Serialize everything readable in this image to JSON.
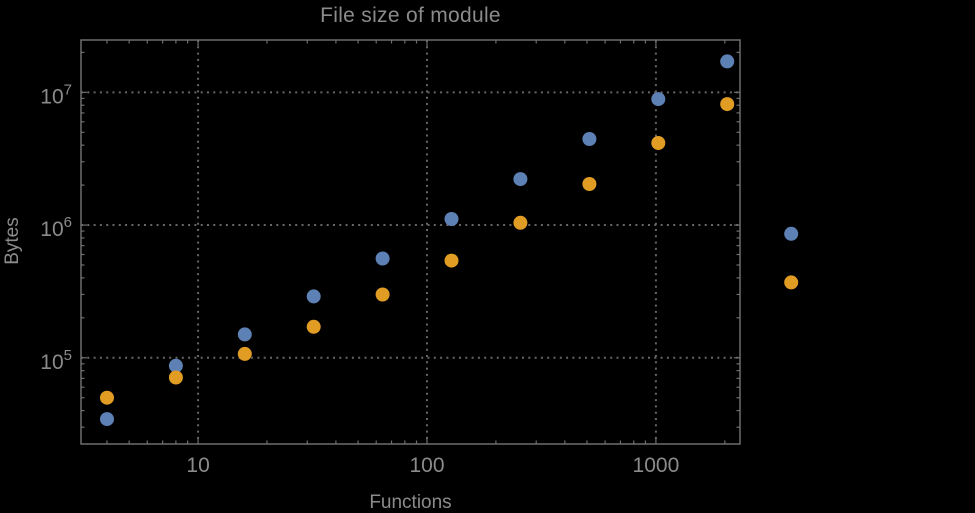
{
  "style": {
    "background": "#000000",
    "text_color": "#8b8b8b",
    "frame_color": "#6e6e6e",
    "grid_color": "#666666",
    "series1_color": "#5e81b5",
    "series2_color": "#e19c24"
  },
  "chart_data": {
    "type": "scatter",
    "title": "File size of module",
    "xlabel": "Functions",
    "ylabel": "Bytes",
    "x_scale": "log",
    "y_scale": "log",
    "grid": "dotted gridlines at decade ticks only",
    "legend": "none",
    "frame": true,
    "x_range": [
      3.08,
      2330
    ],
    "y_range": [
      22400,
      24800000
    ],
    "x_ticks": [
      {
        "value": 10,
        "label": "10"
      },
      {
        "value": 100,
        "label": "100"
      },
      {
        "value": 1000,
        "label": "1000"
      }
    ],
    "y_ticks": [
      {
        "value": 100000,
        "mantissa": "10",
        "exponent": "5"
      },
      {
        "value": 1000000,
        "mantissa": "10",
        "exponent": "6"
      },
      {
        "value": 10000000,
        "mantissa": "10",
        "exponent": "7"
      }
    ],
    "series": [
      {
        "name": "series_1_blue",
        "color": "#5e81b5",
        "points": [
          [
            4,
            34500
          ],
          [
            8,
            87000
          ],
          [
            16,
            150000
          ],
          [
            32,
            290000
          ],
          [
            64,
            560000
          ],
          [
            128,
            1110000
          ],
          [
            256,
            2220000
          ],
          [
            512,
            4450000
          ],
          [
            1024,
            8900000
          ],
          [
            2048,
            17100000
          ],
          [
            3900,
            860000
          ]
        ]
      },
      {
        "name": "series_2_orange",
        "color": "#e19c24",
        "points": [
          [
            4,
            50000
          ],
          [
            8,
            71000
          ],
          [
            16,
            107000
          ],
          [
            32,
            171000
          ],
          [
            64,
            300000
          ],
          [
            128,
            540000
          ],
          [
            256,
            1040000
          ],
          [
            512,
            2040000
          ],
          [
            1024,
            4150000
          ],
          [
            2048,
            8150000
          ],
          [
            3900,
            370000
          ]
        ]
      }
    ]
  }
}
